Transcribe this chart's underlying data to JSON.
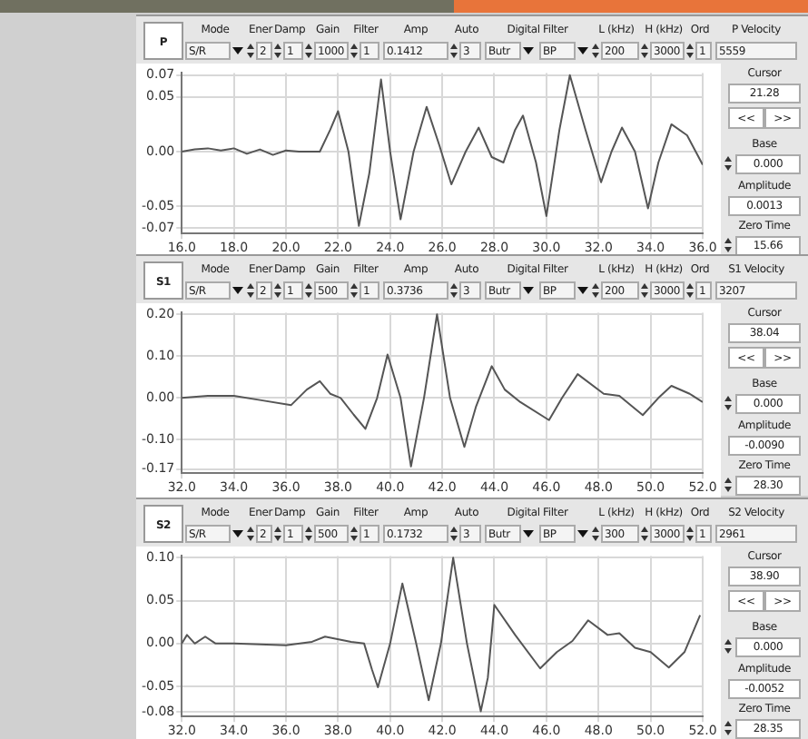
{
  "chart_data": [
    {
      "type": "line",
      "title": "P",
      "grid": true,
      "xlim": [
        16,
        36
      ],
      "ylim": [
        -0.075,
        0.072
      ],
      "xticks": [
        {
          "value": 16,
          "label": "16.0"
        },
        {
          "value": 18,
          "label": "18.0"
        },
        {
          "value": 20,
          "label": "20.0"
        },
        {
          "value": 22,
          "label": "22.0"
        },
        {
          "value": 24,
          "label": "24.0"
        },
        {
          "value": 26,
          "label": "26.0"
        },
        {
          "value": 28,
          "label": "28.0"
        },
        {
          "value": 30,
          "label": "30.0"
        },
        {
          "value": 32,
          "label": "32.0"
        },
        {
          "value": 34,
          "label": "34.0"
        },
        {
          "value": 36,
          "label": "36.0"
        }
      ],
      "yticks": [
        {
          "value": 0.07,
          "label": "0.07"
        },
        {
          "value": 0.05,
          "label": "0.05"
        },
        {
          "value": 0,
          "label": "0.00"
        },
        {
          "value": -0.05,
          "label": "-0.05"
        },
        {
          "value": -0.07,
          "label": "-0.07"
        }
      ],
      "x": [
        16,
        16.5,
        17,
        17.5,
        18,
        18.5,
        19,
        19.5,
        20,
        20.5,
        21.3,
        21.7,
        22.0,
        22.4,
        22.8,
        23.2,
        23.65,
        24.0,
        24.4,
        24.9,
        25.4,
        25.9,
        26.35,
        26.9,
        27.4,
        27.9,
        28.35,
        28.8,
        29.1,
        29.6,
        30.0,
        30.5,
        30.9,
        31.5,
        32.1,
        32.5,
        32.9,
        33.4,
        33.9,
        34.3,
        34.8,
        35.4,
        36.0
      ],
      "series": [
        {
          "color": "#555555",
          "values": [
            0,
            0.002,
            0.003,
            0.001,
            0.003,
            -0.002,
            0.002,
            -0.003,
            0.001,
            0,
            0,
            0.02,
            0.037,
            0,
            -0.068,
            -0.02,
            0.066,
            0,
            -0.062,
            0,
            0.041,
            0.005,
            -0.03,
            0,
            0.022,
            -0.005,
            -0.01,
            0.02,
            0.033,
            -0.01,
            -0.059,
            0.02,
            0.07,
            0.02,
            -0.028,
            0,
            0.022,
            0,
            -0.052,
            -0.01,
            0.025,
            0.015,
            -0.012
          ]
        }
      ],
      "annotations": [
        "Mode",
        "Ener",
        "Damp",
        "Gain",
        "Filter",
        "Amp",
        "Auto",
        "Digital Filter",
        "L (kHz)",
        "H (kHz)",
        "Ord",
        "P Velocity",
        "S/R",
        "2",
        "1",
        "1000",
        "1",
        "0.1412",
        "3",
        "Butr",
        "BP",
        "200",
        "3000",
        "1",
        "5559",
        "Cursor",
        "21.28",
        "<<",
        ">>",
        "Base",
        "0.000",
        "Amplitude",
        "0.0013",
        "Zero Time",
        "15.66"
      ]
    },
    {
      "type": "line",
      "title": "S1",
      "grid": true,
      "xlim": [
        32,
        52
      ],
      "ylim": [
        -0.18,
        0.204
      ],
      "xticks": [
        {
          "value": 32,
          "label": "32.0"
        },
        {
          "value": 34,
          "label": "34.0"
        },
        {
          "value": 36,
          "label": "36.0"
        },
        {
          "value": 38,
          "label": "38.0"
        },
        {
          "value": 40,
          "label": "40.0"
        },
        {
          "value": 42,
          "label": "42.0"
        },
        {
          "value": 44,
          "label": "44.0"
        },
        {
          "value": 46,
          "label": "46.0"
        },
        {
          "value": 48,
          "label": "48.0"
        },
        {
          "value": 50,
          "label": "50.0"
        },
        {
          "value": 52,
          "label": "52.0"
        }
      ],
      "yticks": [
        {
          "value": 0.2,
          "label": "0.20"
        },
        {
          "value": 0.1,
          "label": "0.10"
        },
        {
          "value": 0,
          "label": "0.00"
        },
        {
          "value": -0.1,
          "label": "-0.10"
        },
        {
          "value": -0.17,
          "label": "-0.17"
        }
      ],
      "x": [
        32,
        33,
        34,
        35,
        36.2,
        36.8,
        37.3,
        37.7,
        38.1,
        38.6,
        39.05,
        39.5,
        39.9,
        40.4,
        40.8,
        41.3,
        41.8,
        42.3,
        42.85,
        43.3,
        43.9,
        44.4,
        45.0,
        46.1,
        46.6,
        47.2,
        48.2,
        48.8,
        49.7,
        50.3,
        50.8,
        51.5,
        52
      ],
      "series": [
        {
          "color": "#555555",
          "values": [
            0,
            0.005,
            0.005,
            -0.005,
            -0.017,
            0.02,
            0.04,
            0.01,
            0,
            -0.04,
            -0.074,
            0,
            0.104,
            0,
            -0.164,
            0,
            0.2,
            0,
            -0.117,
            -0.02,
            0.076,
            0.02,
            -0.01,
            -0.053,
            0,
            0.057,
            0.01,
            0.005,
            -0.041,
            0,
            0.029,
            0.01,
            -0.01
          ]
        }
      ],
      "annotations": [
        "Mode",
        "Ener",
        "Damp",
        "Gain",
        "Filter",
        "Amp",
        "Auto",
        "Digital Filter",
        "L (kHz)",
        "H (kHz)",
        "Ord",
        "S1 Velocity",
        "S/R",
        "2",
        "1",
        "500",
        "1",
        "0.3736",
        "3",
        "Butr",
        "BP",
        "200",
        "3000",
        "1",
        "3207",
        "Cursor",
        "38.04",
        "<<",
        ">>",
        "Base",
        "0.000",
        "Amplitude",
        "-0.0090",
        "Zero Time",
        "28.30"
      ]
    },
    {
      "type": "line",
      "title": "S2",
      "grid": true,
      "xlim": [
        32,
        52
      ],
      "ylim": [
        -0.085,
        0.102
      ],
      "xticks": [
        {
          "value": 32,
          "label": "32.0"
        },
        {
          "value": 34,
          "label": "34.0"
        },
        {
          "value": 36,
          "label": "36.0"
        },
        {
          "value": 38,
          "label": "38.0"
        },
        {
          "value": 40,
          "label": "40.0"
        },
        {
          "value": 42,
          "label": "42.0"
        },
        {
          "value": 44,
          "label": "44.0"
        },
        {
          "value": 46,
          "label": "46.0"
        },
        {
          "value": 48,
          "label": "48.0"
        },
        {
          "value": 50,
          "label": "50.0"
        },
        {
          "value": 52,
          "label": "52.0"
        }
      ],
      "yticks": [
        {
          "value": 0.1,
          "label": "0.10"
        },
        {
          "value": 0.05,
          "label": "0.05"
        },
        {
          "value": 0,
          "label": "0.00"
        },
        {
          "value": -0.05,
          "label": "-0.05"
        },
        {
          "value": -0.08,
          "label": "-0.08"
        }
      ],
      "x": [
        32,
        32.2,
        32.5,
        32.9,
        33.3,
        34,
        36,
        37,
        37.5,
        38.5,
        39.0,
        39.3,
        39.53,
        40.0,
        40.47,
        41.0,
        41.48,
        41.95,
        42.42,
        42.95,
        43.48,
        43.75,
        44.0,
        44.8,
        45.76,
        46.4,
        47.0,
        47.6,
        48.35,
        48.8,
        49.4,
        50.0,
        50.7,
        51.3,
        51.9
      ],
      "series": [
        {
          "color": "#555555",
          "values": [
            0,
            0.01,
            0,
            0.008,
            0,
            0,
            -0.002,
            0.002,
            0.008,
            0.002,
            0,
            -0.03,
            -0.051,
            0,
            0.07,
            0,
            -0.066,
            0,
            0.1,
            0,
            -0.079,
            -0.04,
            0.045,
            0.01,
            -0.029,
            -0.01,
            0.003,
            0.027,
            0.01,
            0.012,
            -0.005,
            -0.01,
            -0.028,
            -0.01,
            0.033
          ]
        }
      ],
      "annotations": [
        "Mode",
        "Ener",
        "Damp",
        "Gain",
        "Filter",
        "Amp",
        "Auto",
        "Digital Filter",
        "L (kHz)",
        "H (kHz)",
        "Ord",
        "S2 Velocity",
        "S/R",
        "2",
        "1",
        "500",
        "1",
        "0.1732",
        "3",
        "Butr",
        "BP",
        "300",
        "3000",
        "1",
        "2961",
        "Cursor",
        "38.90",
        "<<",
        ">>",
        "Base",
        "0.000",
        "Amplitude",
        "-0.0052",
        "Zero Time",
        "28.35"
      ]
    }
  ]
}
